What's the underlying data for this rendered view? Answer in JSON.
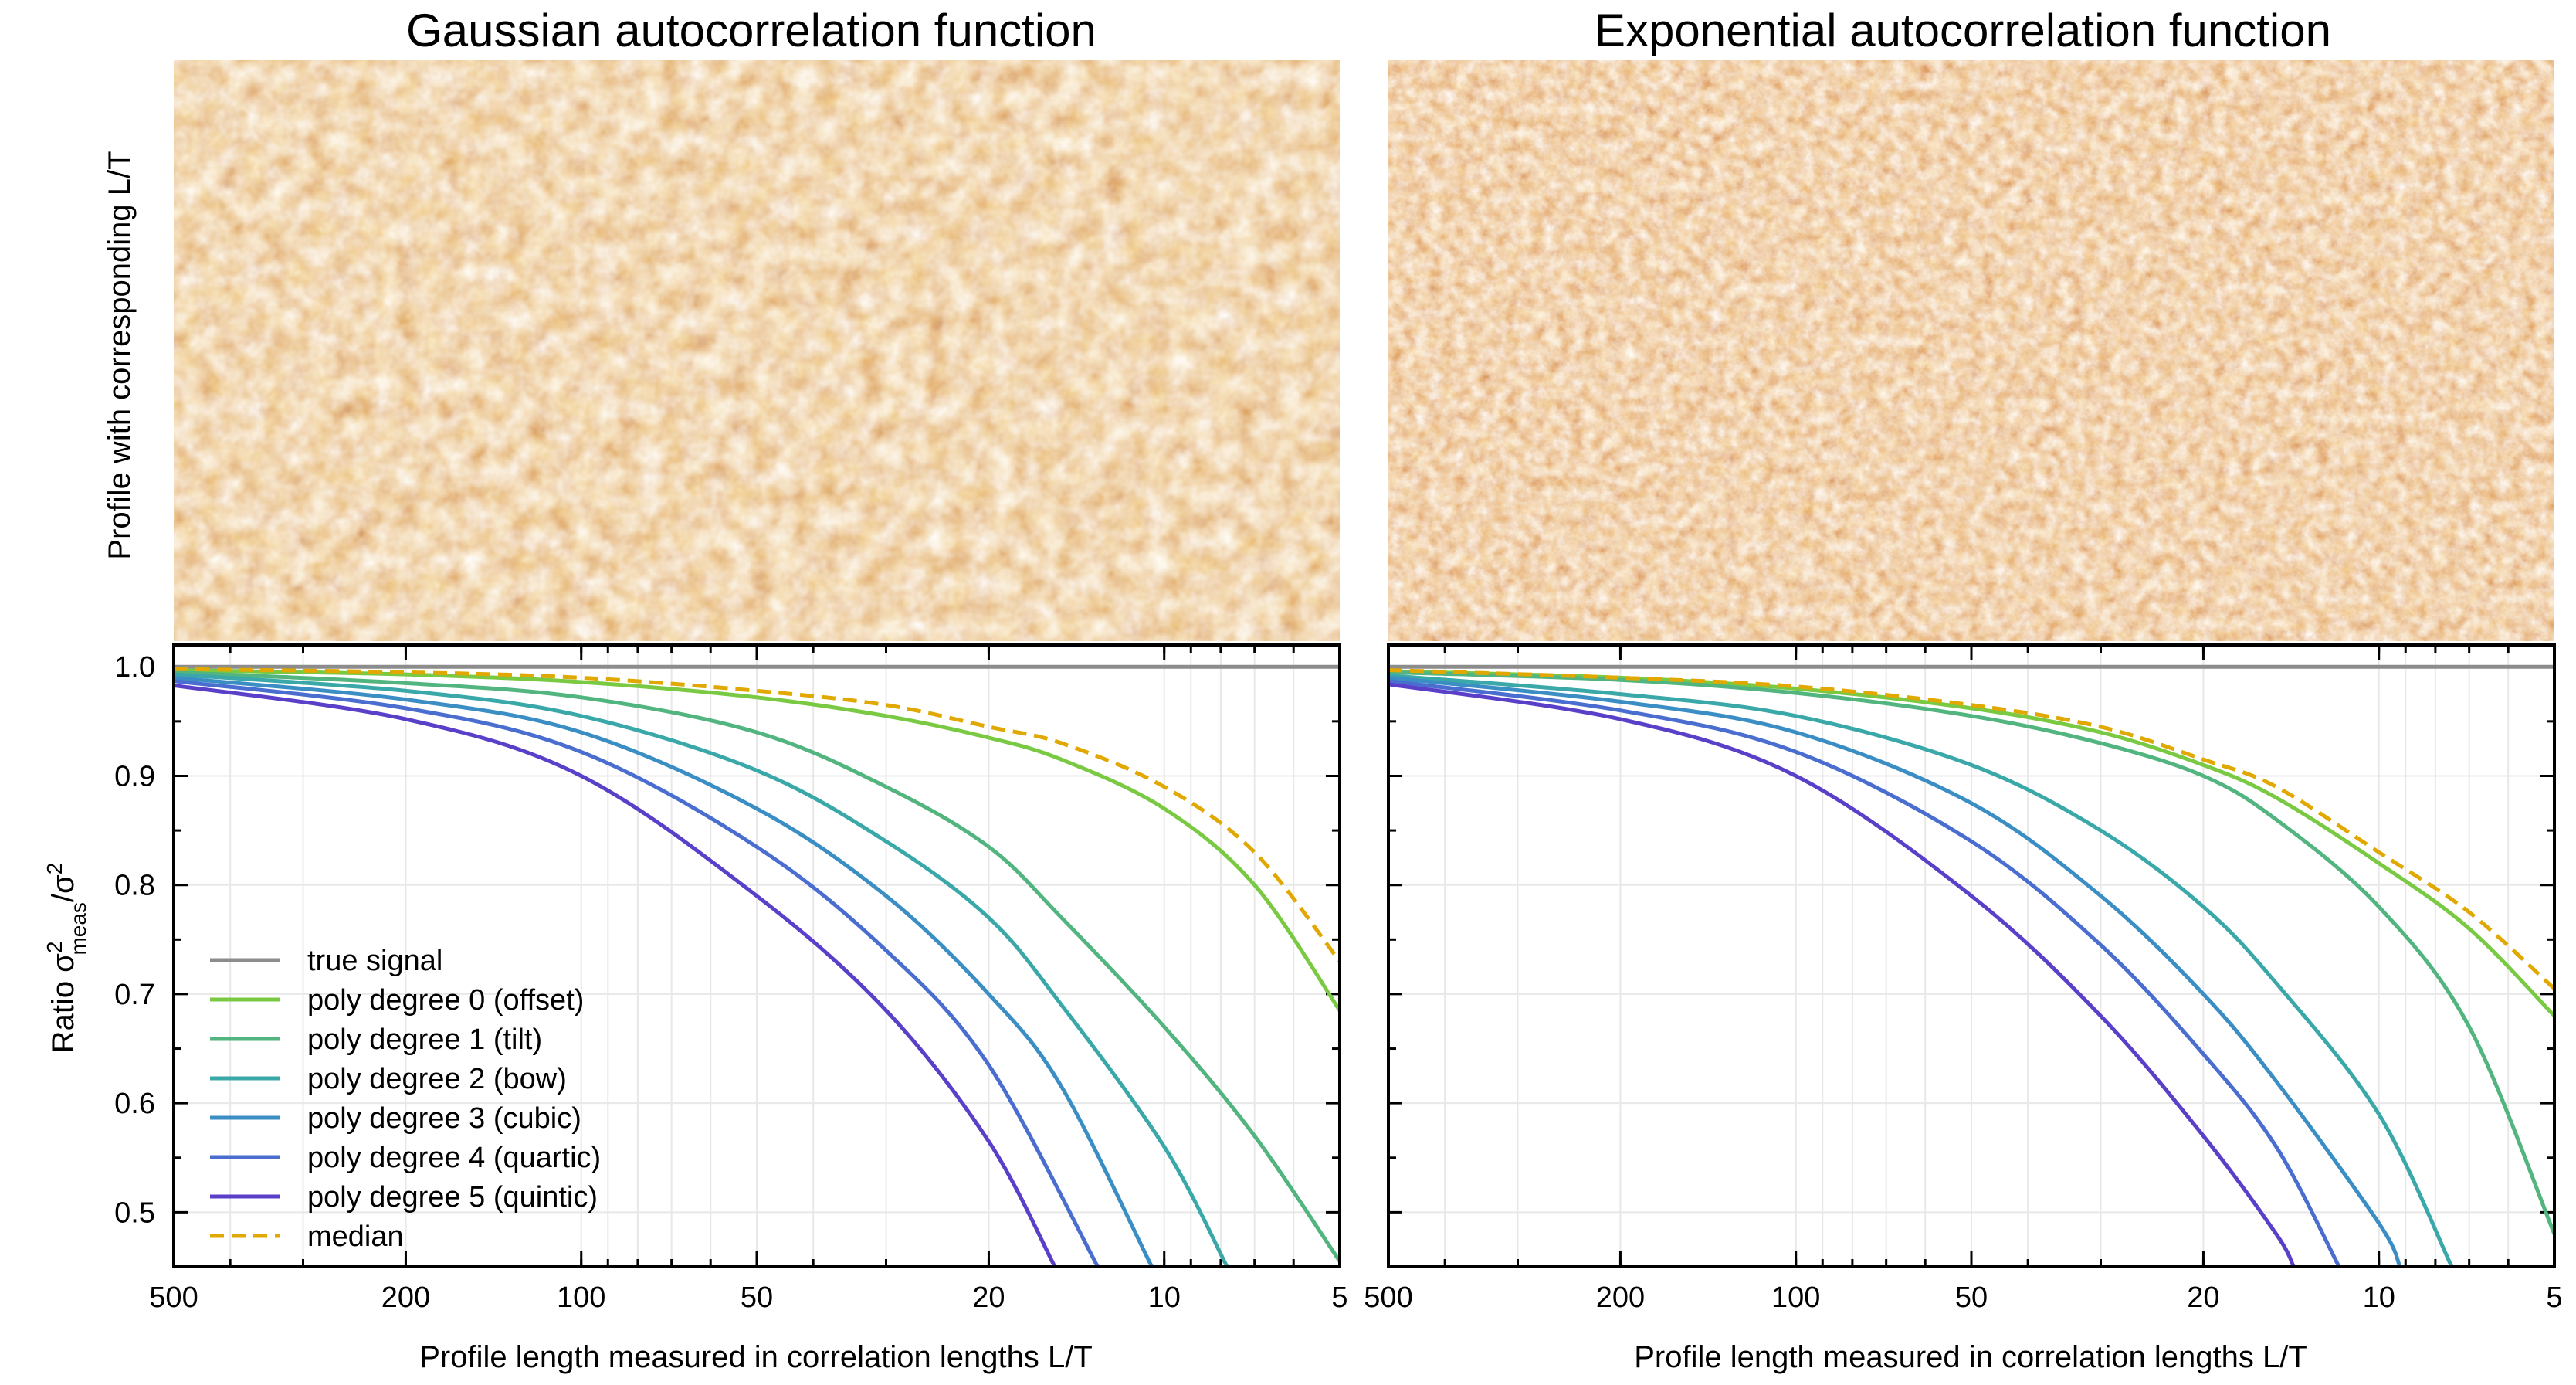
{
  "titles": {
    "left": "Gaussian autocorrelation function",
    "right": "Exponential autocorrelation function"
  },
  "image_ylabel": "Profile with corresponding L/T",
  "colors": {
    "true_signal": "#8c8c8c",
    "deg0": "#7ac943",
    "deg1": "#52b47e",
    "deg2": "#3aa8a8",
    "deg3": "#3a8ec4",
    "deg4": "#4a6dd0",
    "deg5": "#5a3fc8",
    "median": "#e0a800",
    "heat_dark": "#8a1a00",
    "heat_mid": "#d9822b",
    "heat_light": "#ffe5a0"
  },
  "chart_data": [
    {
      "type": "line",
      "title": "Gaussian autocorrelation function",
      "xlabel": "Profile length measured in correlation lengths L/T",
      "ylabel_base": "Ratio σ",
      "ylabel_sup": "2",
      "ylabel_sub": "meas",
      "ylabel_tail": "/σ",
      "ylabel_tail_sup": "2",
      "xscale": "log",
      "xreversed": true,
      "xlim": [
        500,
        5
      ],
      "ylim": [
        0.45,
        1.02
      ],
      "xticks": [
        500,
        200,
        100,
        50,
        20,
        10,
        5
      ],
      "xtick_labels": [
        "500",
        "200",
        "100",
        "50",
        "20",
        "10",
        "5"
      ],
      "yticks": [
        0.5,
        0.6,
        0.7,
        0.8,
        0.9,
        1.0
      ],
      "ytick_labels": [
        "0.5",
        "0.6",
        "0.7",
        "0.8",
        "0.9",
        "1.0"
      ],
      "legend_position": "lower-left",
      "series": [
        {
          "name": "true signal",
          "color_key": "true_signal",
          "dashed": false,
          "x": [
            500,
            5
          ],
          "y": [
            1.0,
            1.0
          ]
        },
        {
          "name": "poly degree 0 (offset)",
          "color_key": "deg0",
          "dashed": false,
          "x": [
            500,
            200,
            100,
            50,
            30,
            20,
            15,
            10,
            7,
            5
          ],
          "y": [
            0.997,
            0.993,
            0.986,
            0.972,
            0.955,
            0.935,
            0.915,
            0.87,
            0.8,
            0.685
          ]
        },
        {
          "name": "poly degree 1 (tilt)",
          "color_key": "deg1",
          "dashed": false,
          "x": [
            500,
            200,
            100,
            50,
            30,
            20,
            15,
            10,
            7,
            5
          ],
          "y": [
            0.995,
            0.985,
            0.972,
            0.94,
            0.89,
            0.835,
            0.77,
            0.67,
            0.57,
            0.455
          ]
        },
        {
          "name": "poly degree 2 (bow)",
          "color_key": "deg2",
          "dashed": false,
          "x": [
            500,
            200,
            100,
            50,
            30,
            20,
            15,
            10,
            7.8
          ],
          "y": [
            0.993,
            0.978,
            0.955,
            0.905,
            0.84,
            0.77,
            0.69,
            0.56,
            0.45
          ]
        },
        {
          "name": "poly degree 3 (cubic)",
          "color_key": "deg3",
          "dashed": false,
          "x": [
            500,
            200,
            100,
            50,
            30,
            20,
            15,
            10.5
          ],
          "y": [
            0.99,
            0.97,
            0.94,
            0.87,
            0.79,
            0.7,
            0.615,
            0.45
          ]
        },
        {
          "name": "poly degree 4 (quartic)",
          "color_key": "deg4",
          "dashed": false,
          "x": [
            500,
            200,
            100,
            50,
            30,
            20,
            13
          ],
          "y": [
            0.987,
            0.962,
            0.922,
            0.835,
            0.74,
            0.635,
            0.45
          ]
        },
        {
          "name": "poly degree 5 (quintic)",
          "color_key": "deg5",
          "dashed": false,
          "x": [
            500,
            200,
            100,
            50,
            30,
            20,
            15.4
          ],
          "y": [
            0.983,
            0.952,
            0.9,
            0.79,
            0.685,
            0.565,
            0.45
          ]
        },
        {
          "name": "median",
          "color_key": "median",
          "dashed": true,
          "x": [
            500,
            200,
            100,
            50,
            30,
            20,
            15,
            10,
            7,
            5
          ],
          "y": [
            0.998,
            0.995,
            0.99,
            0.978,
            0.965,
            0.945,
            0.93,
            0.89,
            0.83,
            0.73
          ]
        }
      ]
    },
    {
      "type": "line",
      "title": "Exponential autocorrelation function",
      "xlabel": "Profile length measured in correlation lengths L/T",
      "xscale": "log",
      "xreversed": true,
      "xlim": [
        500,
        5
      ],
      "ylim": [
        0.45,
        1.02
      ],
      "xticks": [
        500,
        200,
        100,
        50,
        20,
        10,
        5
      ],
      "xtick_labels": [
        "500",
        "200",
        "100",
        "50",
        "20",
        "10",
        "5"
      ],
      "yticks": [
        0.5,
        0.6,
        0.7,
        0.8,
        0.9,
        1.0
      ],
      "series": [
        {
          "name": "true signal",
          "color_key": "true_signal",
          "dashed": false,
          "x": [
            500,
            5
          ],
          "y": [
            1.0,
            1.0
          ]
        },
        {
          "name": "poly degree 0 (offset)",
          "color_key": "deg0",
          "dashed": false,
          "x": [
            500,
            200,
            100,
            50,
            30,
            20,
            15,
            10,
            7,
            5
          ],
          "y": [
            0.996,
            0.99,
            0.98,
            0.962,
            0.94,
            0.91,
            0.88,
            0.82,
            0.76,
            0.68
          ]
        },
        {
          "name": "poly degree 1 (tilt)",
          "color_key": "deg1",
          "dashed": false,
          "x": [
            500,
            200,
            100,
            50,
            30,
            20,
            15,
            10,
            7,
            5
          ],
          "y": [
            0.995,
            0.988,
            0.976,
            0.955,
            0.93,
            0.9,
            0.86,
            0.78,
            0.67,
            0.48
          ]
        },
        {
          "name": "poly degree 2 (bow)",
          "color_key": "deg2",
          "dashed": false,
          "x": [
            500,
            200,
            100,
            50,
            30,
            20,
            15,
            10,
            7.5
          ],
          "y": [
            0.992,
            0.975,
            0.955,
            0.91,
            0.85,
            0.78,
            0.71,
            0.59,
            0.45
          ]
        },
        {
          "name": "poly degree 3 (cubic)",
          "color_key": "deg3",
          "dashed": false,
          "x": [
            500,
            200,
            100,
            50,
            30,
            20,
            15,
            10,
            9.2
          ],
          "y": [
            0.99,
            0.968,
            0.94,
            0.875,
            0.79,
            0.7,
            0.62,
            0.49,
            0.45
          ]
        },
        {
          "name": "poly degree 4 (quartic)",
          "color_key": "deg4",
          "dashed": false,
          "x": [
            500,
            200,
            100,
            50,
            30,
            20,
            15,
            11.7
          ],
          "y": [
            0.987,
            0.96,
            0.922,
            0.84,
            0.745,
            0.645,
            0.56,
            0.45
          ]
        },
        {
          "name": "poly degree 5 (quintic)",
          "color_key": "deg5",
          "dashed": false,
          "x": [
            500,
            200,
            100,
            50,
            30,
            20,
            15,
            14
          ],
          "y": [
            0.984,
            0.952,
            0.9,
            0.79,
            0.68,
            0.57,
            0.48,
            0.45
          ]
        },
        {
          "name": "median",
          "color_key": "median",
          "dashed": true,
          "x": [
            500,
            200,
            100,
            50,
            30,
            20,
            15,
            10,
            7,
            5
          ],
          "y": [
            0.997,
            0.99,
            0.982,
            0.965,
            0.945,
            0.915,
            0.89,
            0.83,
            0.775,
            0.705
          ]
        }
      ]
    }
  ]
}
